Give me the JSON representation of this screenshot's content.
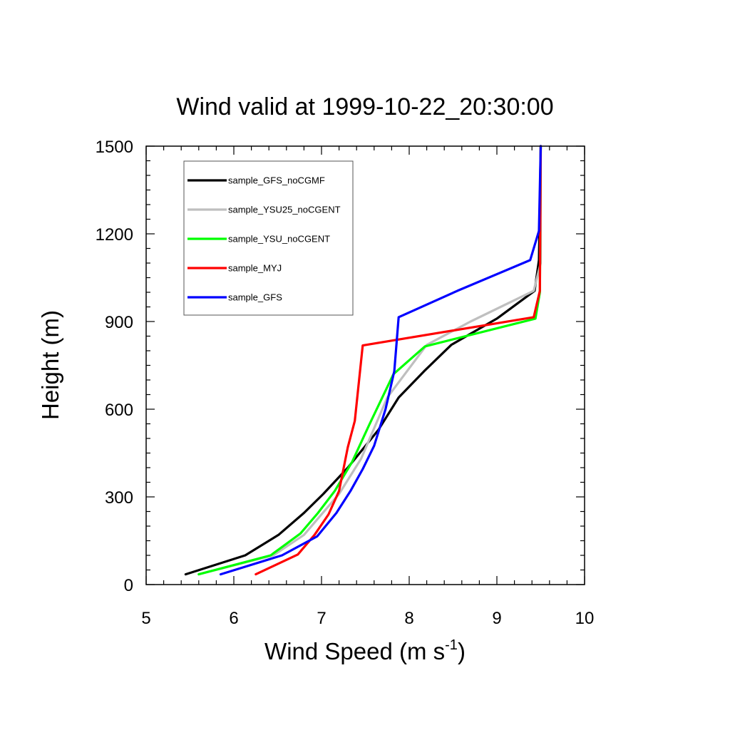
{
  "chart_data": {
    "type": "line",
    "title": "Wind valid at 1999-10-22_20:30:00",
    "xlabel": "Wind Speed (m s",
    "xlabel_sup": "-1",
    "xlabel_close": ")",
    "ylabel": "Height (m)",
    "xlim": [
      5,
      10
    ],
    "ylim": [
      0,
      1500
    ],
    "xticks": [
      5,
      6,
      7,
      8,
      9,
      10
    ],
    "yticks": [
      0,
      300,
      600,
      900,
      1200,
      1500
    ],
    "grid": false,
    "legend_position": "top-left",
    "series": [
      {
        "name": "sample_GFS_noCGMF",
        "color": "#000000",
        "x": [
          5.45,
          6.13,
          6.51,
          6.8,
          7.02,
          7.3,
          7.65,
          7.88,
          8.17,
          8.48,
          9.0,
          9.43,
          9.48,
          9.49,
          9.5
        ],
        "y": [
          35,
          100,
          170,
          245,
          310,
          400,
          530,
          640,
          730,
          820,
          910,
          1005,
          1110,
          1300,
          1500
        ]
      },
      {
        "name": "sample_YSU25_noCGENT",
        "color": "#bfbfbf",
        "x": [
          5.6,
          6.45,
          6.8,
          7.0,
          7.2,
          7.45,
          7.75,
          8.2,
          8.7,
          9.42,
          9.5,
          9.5
        ],
        "y": [
          35,
          100,
          170,
          240,
          310,
          430,
          640,
          820,
          900,
          1005,
          1100,
          1500
        ]
      },
      {
        "name": "sample_YSU_noCGENT",
        "color": "#00ff00",
        "x": [
          5.6,
          6.42,
          6.76,
          6.96,
          7.15,
          7.35,
          7.55,
          7.82,
          8.18,
          9.44,
          9.49,
          9.5
        ],
        "y": [
          35,
          100,
          175,
          245,
          320,
          420,
          550,
          720,
          815,
          910,
          1000,
          1500
        ]
      },
      {
        "name": "sample_MYJ",
        "color": "#ff0000",
        "x": [
          6.25,
          6.73,
          6.92,
          7.08,
          7.2,
          7.3,
          7.38,
          7.47,
          9.42,
          9.49,
          9.5
        ],
        "y": [
          35,
          103,
          170,
          240,
          320,
          470,
          560,
          818,
          915,
          1005,
          1500
        ]
      },
      {
        "name": "sample_GFS",
        "color": "#0000ff",
        "x": [
          5.85,
          6.55,
          6.95,
          7.17,
          7.33,
          7.47,
          7.6,
          7.73,
          7.83,
          7.88,
          8.55,
          9.38,
          9.48,
          9.5
        ],
        "y": [
          35,
          100,
          165,
          245,
          320,
          395,
          475,
          600,
          730,
          915,
          1005,
          1110,
          1210,
          1500
        ]
      }
    ]
  }
}
